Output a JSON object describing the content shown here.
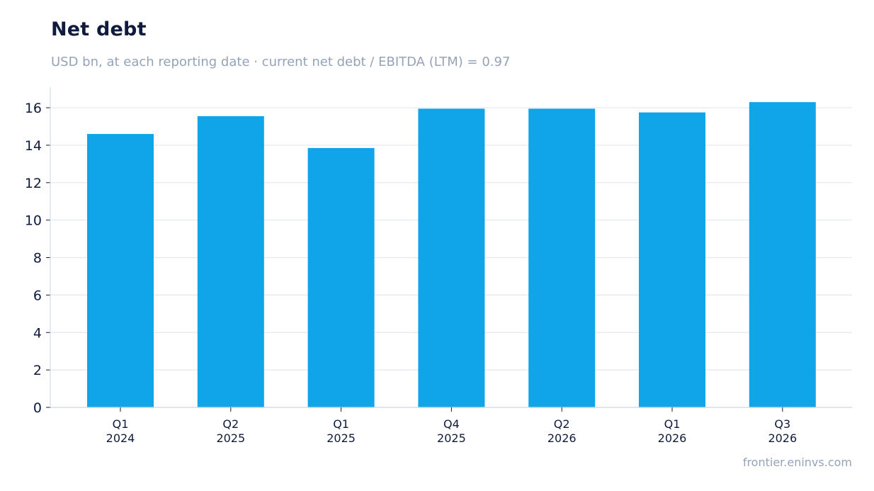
{
  "chart": {
    "title": "Net debt",
    "subtitle": "USD bn, at each reporting date · current net debt / EBITDA (LTM) = 0.97",
    "source": "frontier.eninvs.com"
  },
  "colors": {
    "bar": "#10a5e8",
    "grid": "#e3e8ef",
    "axis": "#cbd5e1",
    "title": "#0f1b3d",
    "muted": "#94a3b8"
  },
  "chart_data": {
    "type": "bar",
    "title": "Net debt",
    "subtitle": "USD bn, at each reporting date · current net debt / EBITDA (LTM) = 0.97",
    "xlabel": "",
    "ylabel": "",
    "categories": [
      [
        "Q1",
        "2024"
      ],
      [
        "Q2",
        "2025"
      ],
      [
        "Q1",
        "2025"
      ],
      [
        "Q4",
        "2025"
      ],
      [
        "Q2",
        "2026"
      ],
      [
        "Q1",
        "2026"
      ],
      [
        "Q3",
        "2026"
      ]
    ],
    "values": [
      14.6,
      15.55,
      13.85,
      15.95,
      15.95,
      15.75,
      16.3
    ],
    "ylim": [
      0,
      17.1
    ],
    "yticks": [
      0,
      2,
      4,
      6,
      8,
      10,
      12,
      14,
      16
    ],
    "grid": true,
    "legend": "none"
  }
}
